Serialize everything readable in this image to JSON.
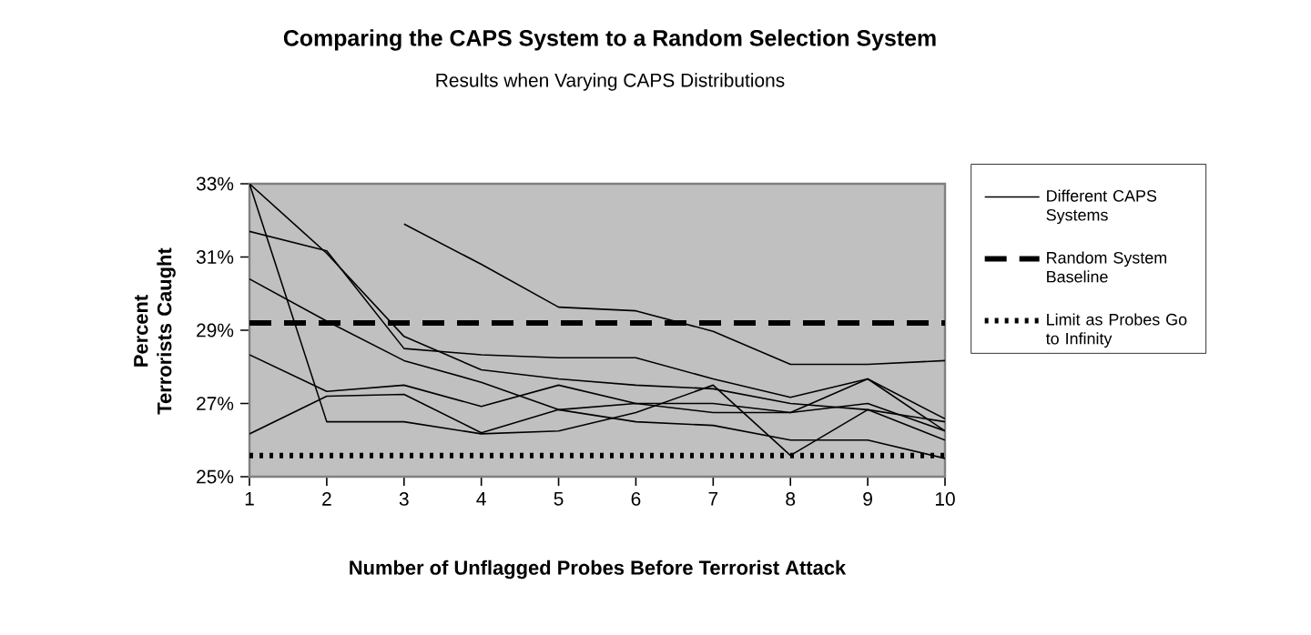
{
  "chart_data": {
    "type": "line",
    "title": "Comparing the CAPS System to a Random Selection System",
    "subtitle": "Results when Varying CAPS Distributions",
    "xlabel": "Number of Unflagged Probes Before Terrorist Attack",
    "ylabel": "Percent Terrorists Caught",
    "x": [
      1,
      2,
      3,
      4,
      5,
      6,
      7,
      8,
      9,
      10
    ],
    "series": [
      {
        "name": "Different CAPS Systems",
        "color": "#000000",
        "values": [
          null,
          null,
          31.9,
          30.8,
          29.63,
          29.53,
          28.97,
          28.07,
          28.07,
          28.17
        ]
      },
      {
        "color": "#000000",
        "values": [
          31.7,
          31.17,
          28.5,
          28.33,
          28.25,
          28.25,
          27.67,
          27.17,
          27.67,
          26.58
        ]
      },
      {
        "color": "#000000",
        "values": [
          33.0,
          31.1,
          28.83,
          27.92,
          27.67,
          27.5,
          27.4,
          27.0,
          26.83,
          26.0
        ]
      },
      {
        "color": "#000000",
        "values": [
          30.4,
          29.25,
          28.17,
          27.58,
          26.83,
          27.0,
          26.75,
          26.75,
          27.0,
          26.25
        ]
      },
      {
        "color": "#000000",
        "values": [
          28.33,
          27.33,
          27.5,
          26.92,
          27.5,
          27.0,
          27.0,
          26.75,
          27.67,
          26.25
        ]
      },
      {
        "color": "#000000",
        "values": [
          33.0,
          26.5,
          26.5,
          26.17,
          26.25,
          26.75,
          27.5,
          25.58,
          26.83,
          26.5
        ]
      },
      {
        "color": "#000000",
        "values": [
          26.17,
          27.2,
          27.25,
          26.2,
          26.83,
          26.5,
          26.4,
          26.0,
          26.0,
          25.5
        ]
      }
    ],
    "ref_lines": [
      {
        "axis": "y",
        "value": 29.2,
        "label": "Random System Baseline",
        "color": "#000000",
        "line_style": "dashed"
      },
      {
        "axis": "y",
        "value": 25.58,
        "label": "Limit as Probes Go to Infinity",
        "color": "#000000",
        "line_style": "dotted"
      }
    ],
    "xlim": [
      1,
      10
    ],
    "ylim": [
      25,
      33
    ],
    "xticks": [
      1,
      2,
      3,
      4,
      5,
      6,
      7,
      8,
      9,
      10
    ],
    "yticks": [
      {
        "value": 25,
        "label": "25%"
      },
      {
        "value": 27,
        "label": "27%"
      },
      {
        "value": 29,
        "label": "29%"
      },
      {
        "value": 31,
        "label": "31%"
      },
      {
        "value": 33,
        "label": "33%"
      }
    ],
    "legend": "right",
    "marker": "none",
    "line_style": "solid"
  }
}
